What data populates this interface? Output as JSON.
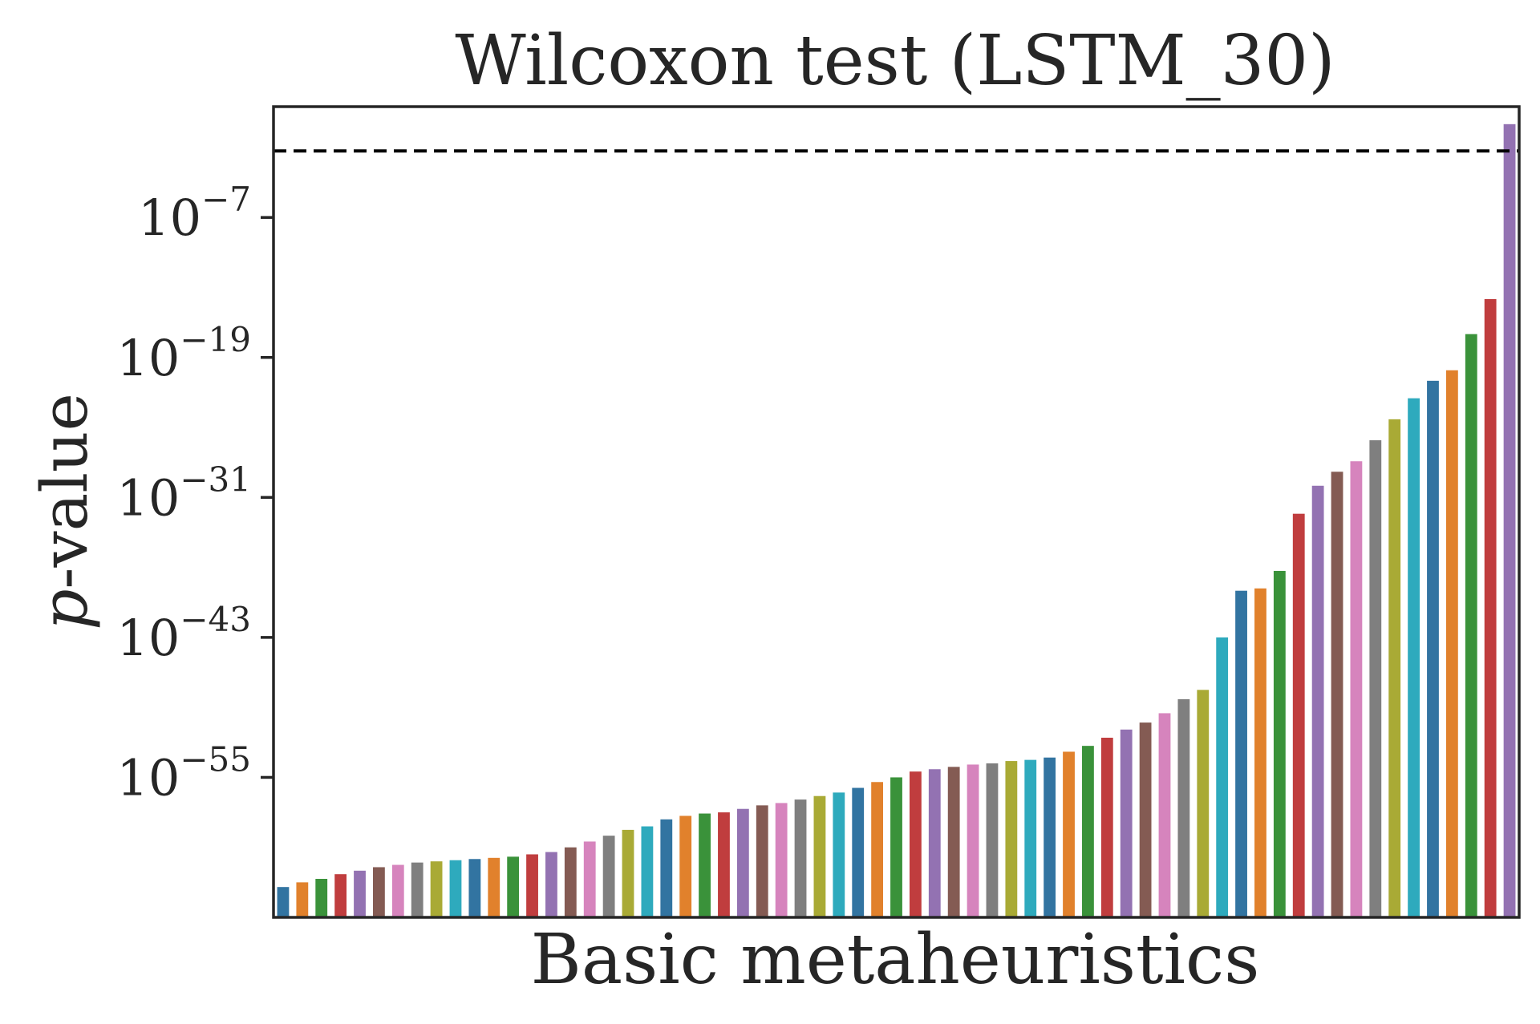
{
  "chart_data": {
    "type": "bar",
    "title": "Wilcoxon test (LSTM_30)",
    "xlabel": "Basic metaheuristics",
    "ylabel_italic": "p",
    "ylabel_rest": "-value",
    "yscale": "log",
    "ylim_exp": [
      -67.0,
      2.5
    ],
    "yticks": [
      {
        "base": "10",
        "exp": "−7",
        "value_exp": -7
      },
      {
        "base": "10",
        "exp": "−19",
        "value_exp": -19
      },
      {
        "base": "10",
        "exp": "−31",
        "value_exp": -31
      },
      {
        "base": "10",
        "exp": "−43",
        "value_exp": -43
      },
      {
        "base": "10",
        "exp": "−55",
        "value_exp": -55
      }
    ],
    "threshold_exp": -1.3,
    "grid": false,
    "legend": "none",
    "palette": [
      "#3274a1",
      "#e1812c",
      "#3a923a",
      "#c03d3e",
      "#9372b2",
      "#845b53",
      "#d684bd",
      "#7f7f7f",
      "#a9aa35",
      "#2eaabd"
    ],
    "bar_exponents": [
      -64.4,
      -64.0,
      -63.7,
      -63.3,
      -63.0,
      -62.7,
      -62.5,
      -62.3,
      -62.2,
      -62.1,
      -62.0,
      -61.9,
      -61.8,
      -61.6,
      -61.4,
      -61.0,
      -60.5,
      -60.0,
      -59.5,
      -59.2,
      -58.6,
      -58.3,
      -58.1,
      -58.0,
      -57.7,
      -57.4,
      -57.2,
      -56.9,
      -56.6,
      -56.3,
      -55.9,
      -55.4,
      -55.0,
      -54.5,
      -54.3,
      -54.1,
      -53.9,
      -53.8,
      -53.6,
      -53.5,
      -53.3,
      -52.8,
      -52.3,
      -51.6,
      -50.9,
      -50.3,
      -49.5,
      -48.3,
      -47.5,
      -43.0,
      -39.0,
      -38.8,
      -37.3,
      -32.4,
      -30.0,
      -28.8,
      -27.9,
      -26.1,
      -24.3,
      -22.5,
      -21.0,
      -20.1,
      -17.0,
      -14.0,
      1.0
    ]
  }
}
